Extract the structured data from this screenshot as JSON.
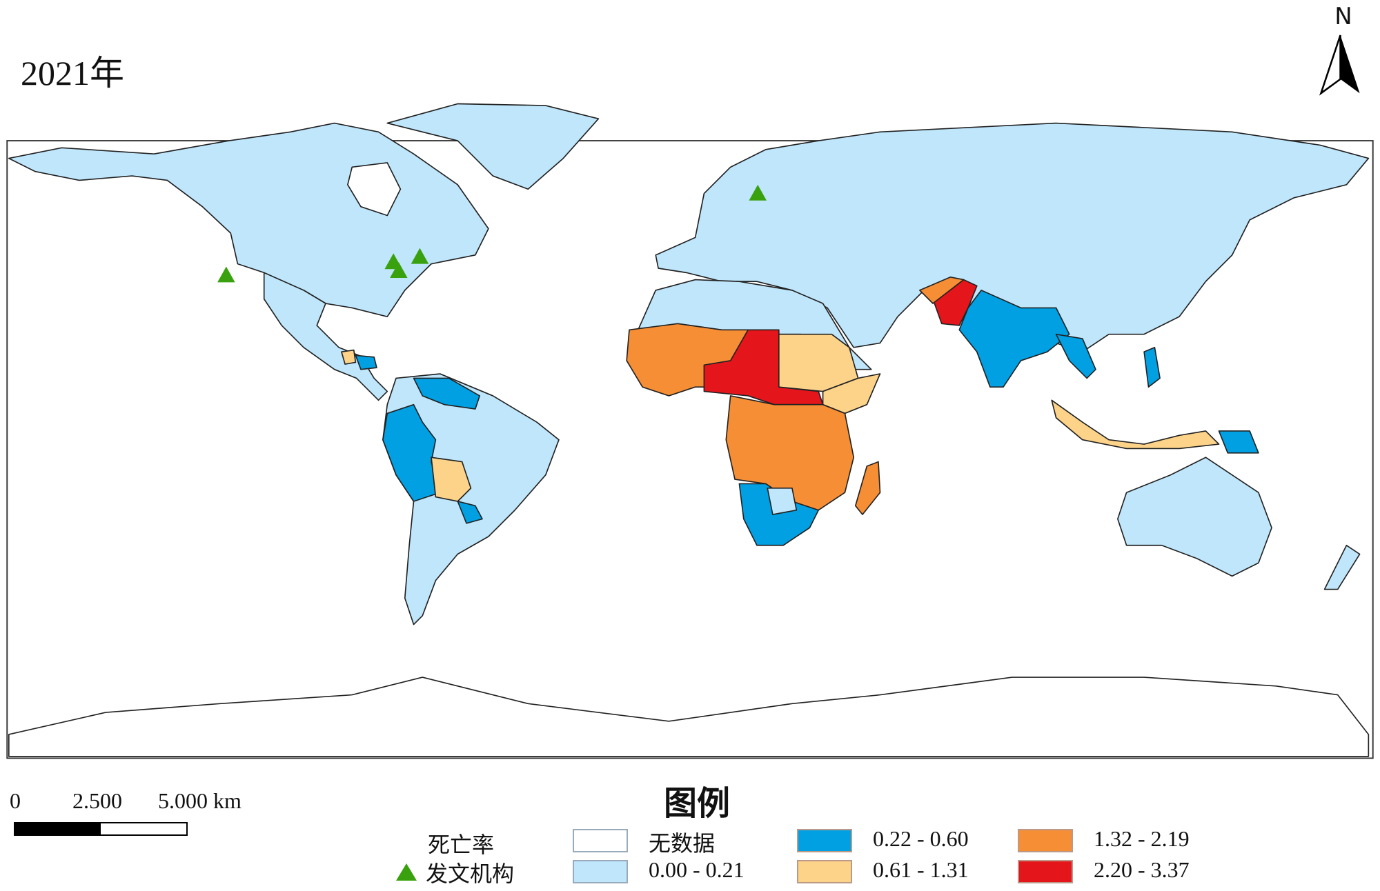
{
  "title": "2021年",
  "north_arrow": {
    "label": "N"
  },
  "scale_bar": {
    "labels": [
      "0",
      "2.500",
      "5.000 km"
    ]
  },
  "legend": {
    "title": "图例",
    "variable_label": "死亡率",
    "marker_label": "发文机构",
    "marker_color": "#3aa10e",
    "classes": [
      {
        "label": "无数据",
        "color": "#ffffff"
      },
      {
        "label": "0.00 - 0.21",
        "color": "#bfe6fb"
      },
      {
        "label": "0.22 - 0.60",
        "color": "#00a0e3"
      },
      {
        "label": "0.61 - 1.31",
        "color": "#fdd38a"
      },
      {
        "label": "1.32 - 2.19",
        "color": "#f68e35"
      },
      {
        "label": "2.20 - 3.37",
        "color": "#e4161c"
      }
    ]
  }
}
